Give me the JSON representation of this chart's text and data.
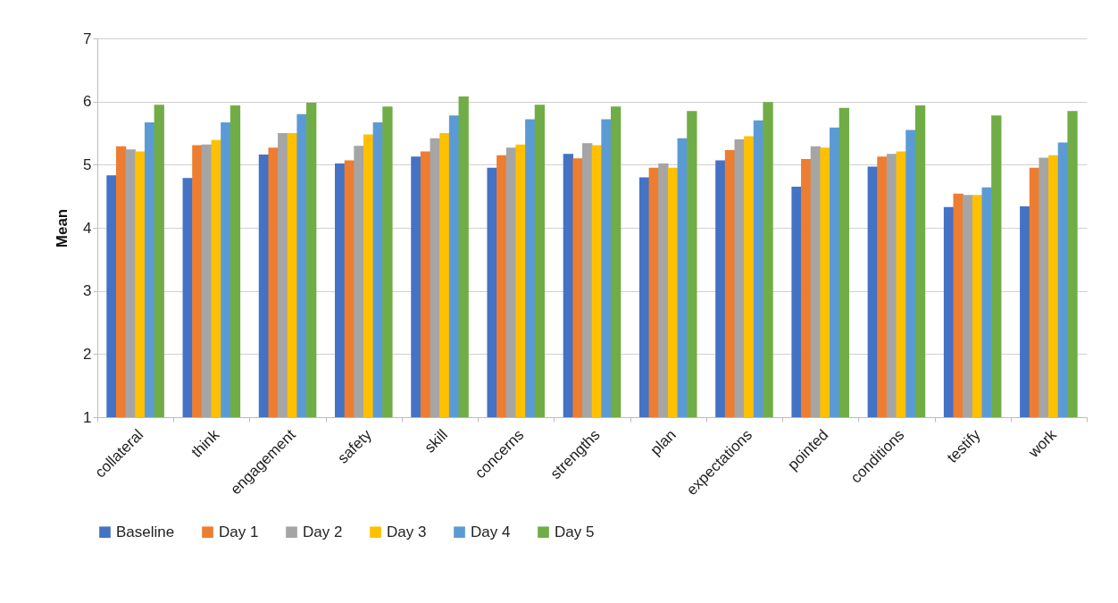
{
  "chart_data": {
    "type": "bar",
    "ylabel": "Mean",
    "categories": [
      "collateral",
      "think",
      "engagement",
      "safety",
      "skill",
      "concerns",
      "strengths",
      "plan",
      "expectations",
      "pointed",
      "conditions",
      "testify",
      "work"
    ],
    "series": [
      {
        "name": "Baseline",
        "color": "#4472c4",
        "values": [
          4.83,
          4.79,
          5.16,
          5.02,
          5.13,
          4.95,
          5.17,
          4.8,
          5.07,
          4.65,
          4.97,
          4.33,
          4.34
        ]
      },
      {
        "name": "Day 1",
        "color": "#ed7d31",
        "values": [
          5.29,
          5.31,
          5.27,
          5.07,
          5.21,
          5.15,
          5.1,
          4.95,
          5.23,
          5.09,
          5.13,
          4.54,
          4.95
        ]
      },
      {
        "name": "Day 2",
        "color": "#a5a5a5",
        "values": [
          5.24,
          5.32,
          5.5,
          5.3,
          5.42,
          5.27,
          5.34,
          5.02,
          5.4,
          5.29,
          5.17,
          4.52,
          5.11
        ]
      },
      {
        "name": "Day 3",
        "color": "#ffc000",
        "values": [
          5.21,
          5.39,
          5.5,
          5.48,
          5.5,
          5.32,
          5.31,
          4.95,
          5.45,
          5.27,
          5.21,
          4.52,
          5.15
        ]
      },
      {
        "name": "Day 4",
        "color": "#5b9bd5",
        "values": [
          5.67,
          5.67,
          5.8,
          5.67,
          5.78,
          5.72,
          5.72,
          5.42,
          5.7,
          5.59,
          5.55,
          4.64,
          5.35
        ]
      },
      {
        "name": "Day 5",
        "color": "#70ad47",
        "values": [
          5.95,
          5.94,
          5.98,
          5.92,
          6.08,
          5.95,
          5.92,
          5.85,
          5.99,
          5.9,
          5.94,
          5.78,
          5.85
        ]
      }
    ],
    "ylim": [
      1,
      7
    ],
    "yticks": [
      1,
      2,
      3,
      4,
      5,
      6,
      7
    ],
    "grid": "y",
    "legend": "bottom"
  }
}
